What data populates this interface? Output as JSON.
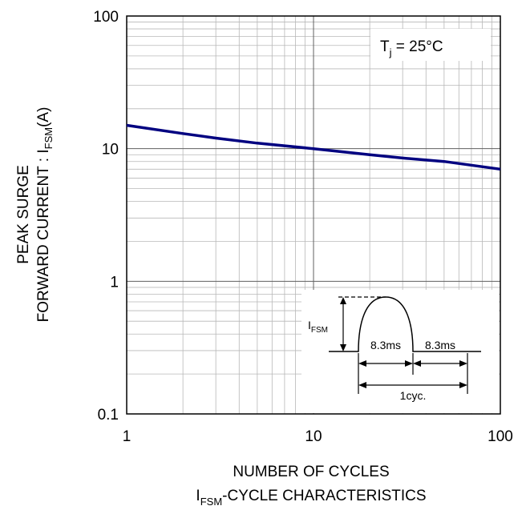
{
  "chart_data": {
    "type": "line",
    "x_scale": "log",
    "y_scale": "log",
    "xlim": [
      1,
      100
    ],
    "ylim": [
      0.1,
      100
    ],
    "x_ticks": [
      {
        "value": 1,
        "label": "1"
      },
      {
        "value": 10,
        "label": "10"
      },
      {
        "value": 100,
        "label": "100"
      }
    ],
    "y_ticks": [
      {
        "value": 0.1,
        "label": "0.1"
      },
      {
        "value": 1,
        "label": "1"
      },
      {
        "value": 10,
        "label": "10"
      },
      {
        "value": 100,
        "label": "100"
      }
    ],
    "grid": true,
    "series": [
      {
        "color": "#000080",
        "x": [
          1,
          2,
          3,
          5,
          10,
          20,
          30,
          50,
          100
        ],
        "y": [
          15,
          13,
          12,
          11,
          10,
          9,
          8.5,
          8,
          7
        ]
      }
    ],
    "xlabel": "NUMBER OF CYCLES",
    "ylabel_line1": "PEAK SURGE",
    "ylabel_line2_prefix": "FORWARD CURRENT : I",
    "ylabel_line2_sub": "FSM",
    "ylabel_line2_suffix": "(A)",
    "caption_prefix": "I",
    "caption_sub": "FSM",
    "caption_suffix": "-CYCLE CHARACTERISTICS",
    "condition": {
      "prefix": "T",
      "sub": "j",
      "suffix": " = 25°C"
    },
    "inset": {
      "ifsm_main": "I",
      "ifsm_sub": "FSM",
      "half_cycle_label": "8.3ms",
      "half_cycle_label_2": "8.3ms",
      "cycle_label": "1cyc."
    }
  }
}
